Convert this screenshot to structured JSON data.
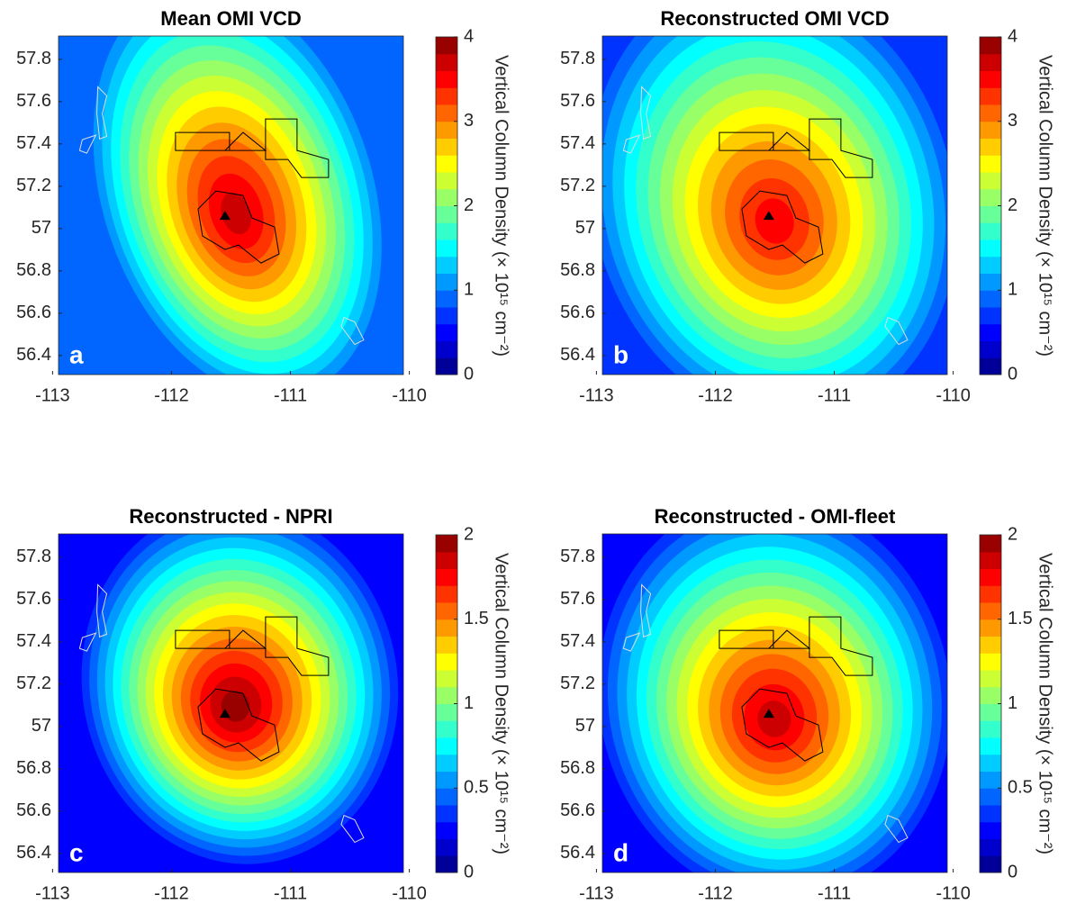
{
  "chart_data": [
    {
      "type": "contour",
      "title": "Mean OMI VCD",
      "panel_label": "a",
      "xlim": [
        -112.95,
        -110.05
      ],
      "xticks": [
        -113,
        -112,
        -111,
        -110
      ],
      "ylim": [
        56.31,
        57.91
      ],
      "yticks": [
        56.4,
        56.6,
        56.8,
        57,
        57.2,
        57.4,
        57.6,
        57.8
      ],
      "colormap": "jet",
      "levels": 20,
      "clim": [
        0,
        4
      ],
      "cticks": [
        0,
        1,
        2,
        3,
        4
      ],
      "colorbar_label": "Vertical Column Density (× 10¹⁵ cm⁻²)"
    },
    {
      "type": "contour",
      "title": "Reconstructed OMI VCD",
      "panel_label": "b",
      "xlim": [
        -112.95,
        -110.05
      ],
      "xticks": [
        -113,
        -112,
        -111,
        -110
      ],
      "ylim": [
        56.31,
        57.91
      ],
      "yticks": [
        56.4,
        56.6,
        56.8,
        57,
        57.2,
        57.4,
        57.6,
        57.8
      ],
      "colormap": "jet",
      "levels": 20,
      "clim": [
        0,
        4
      ],
      "cticks": [
        0,
        1,
        2,
        3,
        4
      ],
      "colorbar_label": "Vertical Column Density (× 10¹⁵ cm⁻²)"
    },
    {
      "type": "contour",
      "title": "Reconstructed - NPRI",
      "panel_label": "c",
      "xlim": [
        -112.95,
        -110.05
      ],
      "xticks": [
        -113,
        -112,
        -111,
        -110
      ],
      "ylim": [
        56.31,
        57.91
      ],
      "yticks": [
        56.4,
        56.6,
        56.8,
        57,
        57.2,
        57.4,
        57.6,
        57.8
      ],
      "colormap": "jet",
      "levels": 20,
      "clim": [
        0,
        2
      ],
      "cticks": [
        0,
        0.5,
        1,
        1.5,
        2
      ],
      "colorbar_label": "Vertical Column Density (× 10¹⁵ cm⁻²)"
    },
    {
      "type": "contour",
      "title": "Reconstructed - OMI-fleet",
      "panel_label": "d",
      "xlim": [
        -112.95,
        -110.05
      ],
      "xticks": [
        -113,
        -112,
        -111,
        -110
      ],
      "ylim": [
        56.31,
        57.91
      ],
      "yticks": [
        56.4,
        56.6,
        56.8,
        57,
        57.2,
        57.4,
        57.6,
        57.8
      ],
      "colormap": "jet",
      "levels": 20,
      "clim": [
        0,
        2
      ],
      "cticks": [
        0,
        0.5,
        1,
        1.5,
        2
      ],
      "colorbar_label": "Vertical Column Density (× 10¹⁵ cm⁻²)"
    }
  ]
}
